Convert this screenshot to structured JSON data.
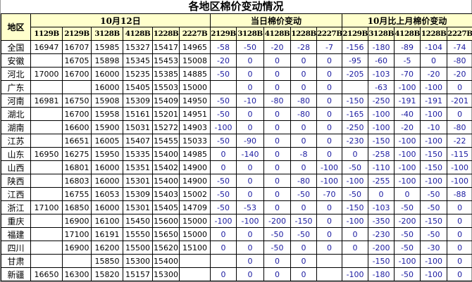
{
  "title": "各地区棉价变动情况",
  "header": {
    "region": "地区",
    "group_date": "10月12日",
    "group_daily": "当日棉价变动",
    "group_monthly": "10月比上月棉价变动",
    "price_columns": [
      "1129B",
      "2129B",
      "3128B",
      "4128B",
      "1228B",
      "2227B"
    ],
    "daily_columns": [
      "2129B",
      "3128B",
      "4128B",
      "1228B",
      "2227B"
    ],
    "monthly_columns": [
      "2129B",
      "3128B",
      "4128B",
      "1228B",
      "2227B"
    ]
  },
  "rows": [
    {
      "region": "全国",
      "prices": [
        "16947",
        "16707",
        "15985",
        "15327",
        "15417",
        "14965"
      ],
      "daily": [
        "-58",
        "-50",
        "-20",
        "-28",
        "-7"
      ],
      "monthly": [
        "-156",
        "-180",
        "-89",
        "-104",
        "-74"
      ]
    },
    {
      "region": "安徽",
      "prices": [
        "",
        "16705",
        "15898",
        "15345",
        "15453",
        "15008"
      ],
      "daily": [
        "-20",
        "0",
        "0",
        "0",
        "0"
      ],
      "monthly": [
        "-95",
        "-60",
        "-5",
        "0",
        "-80"
      ]
    },
    {
      "region": "河北",
      "prices": [
        "17000",
        "16700",
        "16000",
        "15235",
        "15385",
        "14885"
      ],
      "daily": [
        "-50",
        "0",
        "0",
        "0",
        "0"
      ],
      "monthly": [
        "-205",
        "-103",
        "-70",
        "-20",
        "-20"
      ]
    },
    {
      "region": "广东",
      "prices": [
        "",
        "",
        "16000",
        "15405",
        "15503",
        "15000"
      ],
      "daily": [
        "",
        "0",
        "0",
        "0",
        "0"
      ],
      "monthly": [
        "",
        "-63",
        "-100",
        "-100",
        "0"
      ]
    },
    {
      "region": "河南",
      "prices": [
        "16981",
        "16750",
        "15908",
        "15309",
        "15409",
        "14950"
      ],
      "daily": [
        "-50",
        "-10",
        "-80",
        "-80",
        "0"
      ],
      "monthly": [
        "-150",
        "-250",
        "-191",
        "-191",
        "-201"
      ]
    },
    {
      "region": "湖北",
      "prices": [
        "",
        "16700",
        "15958",
        "15161",
        "15201",
        "14951"
      ],
      "daily": [
        "-50",
        "0",
        "0",
        "-80",
        "0"
      ],
      "monthly": [
        "-165",
        "-100",
        "-40",
        "-100",
        "0"
      ]
    },
    {
      "region": "湖南",
      "prices": [
        "",
        "16600",
        "15900",
        "15031",
        "15272",
        "14903"
      ],
      "daily": [
        "-100",
        "0",
        "0",
        "0",
        "0"
      ],
      "monthly": [
        "-250",
        "-100",
        "-20",
        "-10",
        "-80"
      ]
    },
    {
      "region": "江苏",
      "prices": [
        "",
        "16651",
        "16005",
        "15407",
        "15455",
        "15033"
      ],
      "daily": [
        "-50",
        "-90",
        "0",
        "0",
        "0"
      ],
      "monthly": [
        "-230",
        "-150",
        "-100",
        "-100",
        "-22"
      ]
    },
    {
      "region": "山东",
      "prices": [
        "16950",
        "16275",
        "15950",
        "15335",
        "15400",
        "14985"
      ],
      "daily": [
        "0",
        "-140",
        "0",
        "-8",
        "0"
      ],
      "monthly": [
        "0",
        "-258",
        "-100",
        "-150",
        "-115"
      ]
    },
    {
      "region": "山西",
      "prices": [
        "",
        "16801",
        "16000",
        "15351",
        "15402",
        "14900"
      ],
      "daily": [
        "0",
        "0",
        "0",
        "0",
        "-100"
      ],
      "monthly": [
        "-50",
        "-110",
        "-100",
        "-150",
        "-100"
      ]
    },
    {
      "region": "陕西",
      "prices": [
        "",
        "16803",
        "16000",
        "15301",
        "15400",
        "14900"
      ],
      "daily": [
        "-50",
        "0",
        "0",
        "-80",
        "-100"
      ],
      "monthly": [
        "-100",
        "-255",
        "-100",
        "-100",
        "-100"
      ]
    },
    {
      "region": "江西",
      "prices": [
        "",
        "16755",
        "16053",
        "15309",
        "15403",
        "15002"
      ],
      "daily": [
        "-50",
        "0",
        "0",
        "-50",
        "-70"
      ],
      "monthly": [
        "-50",
        "0",
        "0",
        "-50",
        "-88"
      ]
    },
    {
      "region": "浙江",
      "prices": [
        "17100",
        "16850",
        "16000",
        "15301",
        "15405",
        "14709"
      ],
      "daily": [
        "-50",
        "-53",
        "0",
        "0",
        "0"
      ],
      "monthly": [
        "-150",
        "-103",
        "-50",
        "-50",
        "0"
      ]
    },
    {
      "region": "重庆",
      "prices": [
        "",
        "16900",
        "16100",
        "15450",
        "15600",
        "15000"
      ],
      "daily": [
        "-100",
        "-100",
        "-200",
        "-150",
        "0"
      ],
      "monthly": [
        "-100",
        "-350",
        "-200",
        "-150",
        "0"
      ]
    },
    {
      "region": "福建",
      "prices": [
        "",
        "17100",
        "16191",
        "15550",
        "15650",
        "15000"
      ],
      "daily": [
        "0",
        "0",
        "-50",
        "-50",
        "0"
      ],
      "monthly": [
        "0",
        "-230",
        "-50",
        "-50",
        "0"
      ]
    },
    {
      "region": "四川",
      "prices": [
        "",
        "16900",
        "16200",
        "15500",
        "15620",
        "15100"
      ],
      "daily": [
        "0",
        "0",
        "-50",
        "0",
        "0"
      ],
      "monthly": [
        "0",
        "-200",
        "-50",
        "-30",
        "0"
      ]
    },
    {
      "region": "甘肃",
      "prices": [
        "",
        "",
        "15850",
        "15300",
        "15400",
        ""
      ],
      "daily": [
        "",
        "0",
        "0",
        "0",
        ""
      ],
      "monthly": [
        "",
        "-150",
        "-100",
        "-100",
        "0"
      ]
    },
    {
      "region": "新疆",
      "prices": [
        "16650",
        "16300",
        "15820",
        "15157",
        "15300",
        ""
      ],
      "daily": [
        "0",
        "0",
        "0",
        "0",
        ""
      ],
      "monthly": [
        "-100",
        "-180",
        "-50",
        "-100",
        "0"
      ]
    }
  ],
  "colors": {
    "header_bg": "#ffffcc",
    "change_text": "#1a1aa0"
  }
}
